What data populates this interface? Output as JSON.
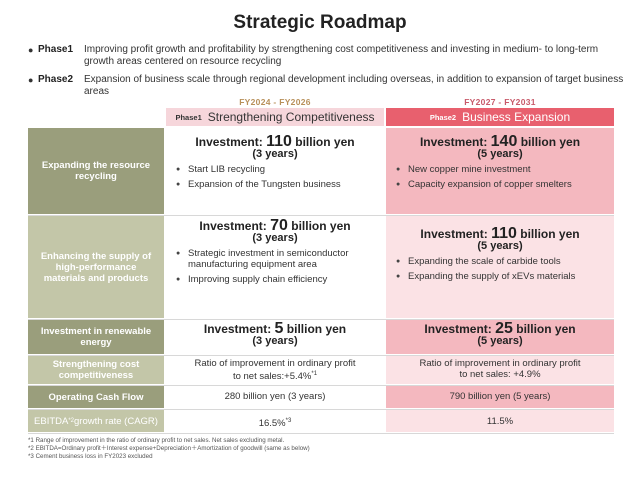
{
  "title": "Strategic Roadmap",
  "phases": [
    {
      "name": "Phase1",
      "description": "Improving profit growth and profitability by strengthening cost competitiveness and investing in  medium- to long-term growth areas centered on resource recycling"
    },
    {
      "name": "Phase2",
      "description": "Expansion of business scale through regional development including overseas, in addition to expansion of target business areas"
    }
  ],
  "columns": [
    {
      "period": "FY2024 - FY2026",
      "tag": "Phase1",
      "title": "Strengthening Competitiveness"
    },
    {
      "period": "FY2027 - FY2031",
      "tag": "Phase2",
      "title": "Business Expansion"
    }
  ],
  "investment_prefix": "Investment: ",
  "rows": {
    "resource": {
      "label": "Expanding the resource recycling",
      "p1": {
        "amount": "110",
        "unit": " billion yen",
        "years": "(3 years)",
        "items": [
          "Start LIB recycling",
          "Expansion of the Tungsten business"
        ]
      },
      "p2": {
        "amount": "140",
        "unit": " billion yen",
        "years": "(5 years)",
        "items": [
          "New copper mine investment",
          "Capacity expansion of copper smelters"
        ]
      }
    },
    "materials": {
      "label": "Enhancing the supply of high-performance materials and products",
      "p1": {
        "amount": "70",
        "unit": " billion yen",
        "years": "(3 years)",
        "items": [
          "Strategic investment in semiconductor manufacturing equipment area",
          "Improving supply chain efficiency"
        ]
      },
      "p2": {
        "amount": "110",
        "unit": " billion yen",
        "years": "(5 years)",
        "items": [
          "Expanding the scale of carbide tools",
          "Expanding the supply of xEVs materials"
        ]
      }
    },
    "renewable": {
      "label": "Investment in renewable energy",
      "p1": {
        "amount": "5",
        "unit": " billion yen",
        "years": "(3 years)"
      },
      "p2": {
        "amount": "25",
        "unit": " billion yen",
        "years": "(5 years)"
      }
    },
    "cost": {
      "label": "Strengthening cost competitiveness",
      "p1": {
        "line1": "Ratio of improvement in ordinary profit",
        "line2": "to net sales:+5.4%",
        "sup": "*1"
      },
      "p2": {
        "line1": "Ratio of improvement in ordinary profit",
        "line2": "to net sales: +4.9%"
      }
    },
    "cashflow": {
      "label": "Operating Cash Flow",
      "p1": "280 billion yen (3 years)",
      "p2": "790 billion yen (5 years)"
    },
    "ebitda": {
      "label": "EBITDA",
      "label_sup": "*2",
      "label_rest": "growth rate (CAGR)",
      "p1": "16.5%",
      "p1_sup": "*3",
      "p2": "11.5%"
    }
  },
  "footnotes": [
    "*1 Range of improvement in the ratio of ordinary profit to net sales. Net sales excluding metal.",
    "*2 EBITDA=Ordinary profit＋Interest expense+Depreciation＋Amortization of goodwill (same as below)",
    "*3 Cement business loss in FY2023 excluded"
  ],
  "colors": {
    "phase1_header": "#f6d6db",
    "phase2_header": "#e8606e",
    "label_dark": "#9a9e7c",
    "label_light": "#c3c6a8",
    "phase2_cell": "#fbe2e5"
  }
}
